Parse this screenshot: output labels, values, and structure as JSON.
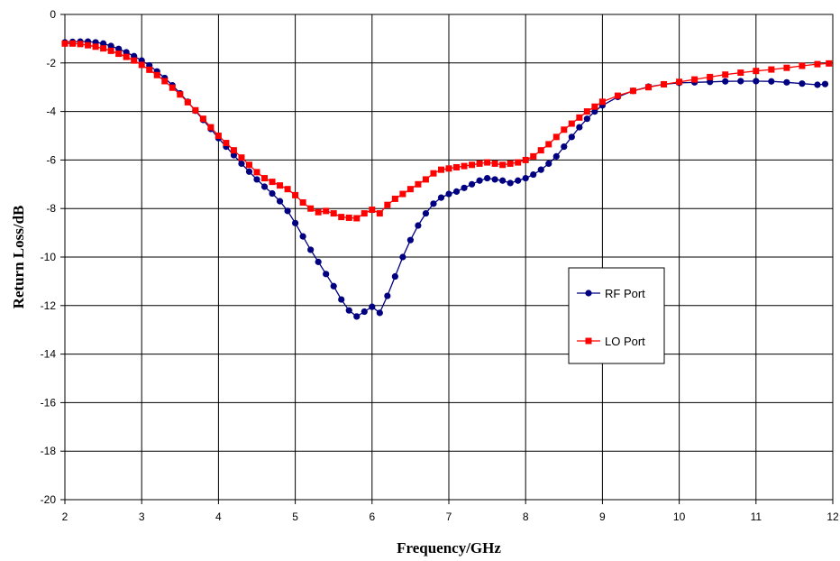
{
  "chart_data": {
    "type": "line",
    "title": "",
    "xlabel": "Frequency/GHz",
    "ylabel": "Return Loss/dB",
    "xlim": [
      2,
      12
    ],
    "ylim": [
      -20,
      0
    ],
    "xticks": [
      "2",
      "3",
      "4",
      "5",
      "6",
      "7",
      "8",
      "9",
      "10",
      "11",
      "12"
    ],
    "yticks": [
      "0",
      "-2",
      "-4",
      "-6",
      "-8",
      "-10",
      "-12",
      "-14",
      "-16",
      "-18",
      "-20"
    ],
    "grid": true,
    "legend_position": "right-center",
    "series": [
      {
        "name": "RF Port",
        "color": "#000080",
        "marker": "circle",
        "x": [
          2,
          2.1,
          2.2,
          2.3,
          2.4,
          2.5,
          2.6,
          2.7,
          2.8,
          2.9,
          3.0,
          3.1,
          3.2,
          3.3,
          3.4,
          3.5,
          3.6,
          3.7,
          3.8,
          3.9,
          4.0,
          4.1,
          4.2,
          4.3,
          4.4,
          4.5,
          4.6,
          4.7,
          4.8,
          4.9,
          5.0,
          5.1,
          5.2,
          5.3,
          5.4,
          5.5,
          5.6,
          5.7,
          5.8,
          5.9,
          6.0,
          6.1,
          6.2,
          6.3,
          6.4,
          6.5,
          6.6,
          6.7,
          6.8,
          6.9,
          7.0,
          7.1,
          7.2,
          7.3,
          7.4,
          7.5,
          7.6,
          7.7,
          7.8,
          7.9,
          8.0,
          8.1,
          8.2,
          8.3,
          8.4,
          8.5,
          8.6,
          8.7,
          8.8,
          8.9,
          9.0,
          9.2,
          9.4,
          9.6,
          9.8,
          10.0,
          10.2,
          10.4,
          10.6,
          10.8,
          11.0,
          11.2,
          11.4,
          11.6,
          11.8,
          11.9
        ],
        "y": [
          -1.15,
          -1.13,
          -1.12,
          -1.12,
          -1.15,
          -1.2,
          -1.3,
          -1.42,
          -1.56,
          -1.72,
          -1.9,
          -2.1,
          -2.35,
          -2.62,
          -2.92,
          -3.25,
          -3.6,
          -3.97,
          -4.35,
          -4.72,
          -5.1,
          -5.45,
          -5.8,
          -6.15,
          -6.48,
          -6.8,
          -7.1,
          -7.38,
          -7.7,
          -8.1,
          -8.6,
          -9.15,
          -9.7,
          -10.2,
          -10.7,
          -11.2,
          -11.75,
          -12.2,
          -12.45,
          -12.25,
          -12.05,
          -12.3,
          -11.6,
          -10.8,
          -10.0,
          -9.3,
          -8.7,
          -8.2,
          -7.8,
          -7.55,
          -7.4,
          -7.3,
          -7.15,
          -7.0,
          -6.85,
          -6.75,
          -6.8,
          -6.85,
          -6.95,
          -6.85,
          -6.75,
          -6.6,
          -6.4,
          -6.15,
          -5.85,
          -5.45,
          -5.05,
          -4.65,
          -4.3,
          -4.0,
          -3.75,
          -3.4,
          -3.15,
          -2.98,
          -2.88,
          -2.82,
          -2.8,
          -2.78,
          -2.76,
          -2.75,
          -2.75,
          -2.76,
          -2.8,
          -2.85,
          -2.9,
          -2.87
        ]
      },
      {
        "name": "LO Port",
        "color": "#ff0000",
        "marker": "square",
        "x": [
          2,
          2.1,
          2.2,
          2.3,
          2.4,
          2.5,
          2.6,
          2.7,
          2.8,
          2.9,
          3.0,
          3.1,
          3.2,
          3.3,
          3.4,
          3.5,
          3.6,
          3.7,
          3.8,
          3.9,
          4.0,
          4.1,
          4.2,
          4.3,
          4.4,
          4.5,
          4.6,
          4.7,
          4.8,
          4.9,
          5.0,
          5.1,
          5.2,
          5.3,
          5.4,
          5.5,
          5.6,
          5.7,
          5.8,
          5.9,
          6.0,
          6.1,
          6.2,
          6.3,
          6.4,
          6.5,
          6.6,
          6.7,
          6.8,
          6.9,
          7.0,
          7.1,
          7.2,
          7.3,
          7.4,
          7.5,
          7.6,
          7.7,
          7.8,
          7.9,
          8.0,
          8.1,
          8.2,
          8.3,
          8.4,
          8.5,
          8.6,
          8.7,
          8.8,
          8.9,
          9.0,
          9.2,
          9.4,
          9.6,
          9.8,
          10.0,
          10.2,
          10.4,
          10.6,
          10.8,
          11.0,
          11.2,
          11.4,
          11.6,
          11.8,
          11.95
        ],
        "y": [
          -1.2,
          -1.2,
          -1.22,
          -1.27,
          -1.33,
          -1.4,
          -1.5,
          -1.62,
          -1.75,
          -1.9,
          -2.08,
          -2.28,
          -2.5,
          -2.75,
          -3.02,
          -3.3,
          -3.62,
          -3.95,
          -4.3,
          -4.65,
          -5.0,
          -5.3,
          -5.6,
          -5.9,
          -6.2,
          -6.5,
          -6.75,
          -6.9,
          -7.05,
          -7.2,
          -7.45,
          -7.75,
          -8.0,
          -8.15,
          -8.1,
          -8.2,
          -8.35,
          -8.38,
          -8.4,
          -8.2,
          -8.05,
          -8.2,
          -7.85,
          -7.6,
          -7.4,
          -7.2,
          -7.0,
          -6.8,
          -6.55,
          -6.4,
          -6.35,
          -6.3,
          -6.25,
          -6.2,
          -6.15,
          -6.1,
          -6.15,
          -6.2,
          -6.15,
          -6.1,
          -6.0,
          -5.85,
          -5.6,
          -5.35,
          -5.05,
          -4.75,
          -4.5,
          -4.25,
          -4.0,
          -3.8,
          -3.6,
          -3.35,
          -3.15,
          -3.0,
          -2.88,
          -2.78,
          -2.68,
          -2.58,
          -2.48,
          -2.4,
          -2.33,
          -2.27,
          -2.2,
          -2.12,
          -2.05,
          -2.02
        ]
      }
    ]
  }
}
